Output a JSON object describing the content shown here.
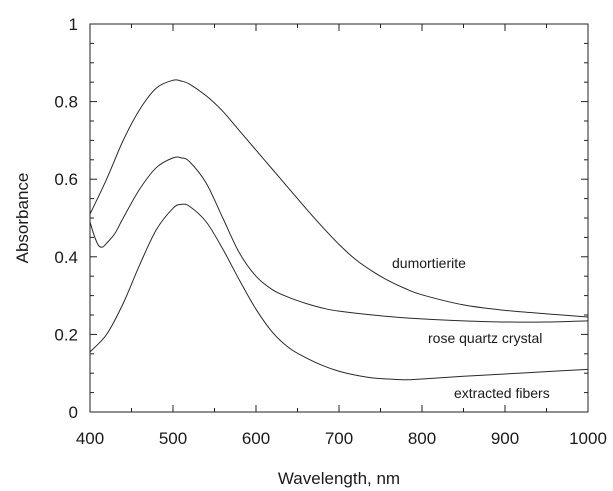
{
  "chart_data": {
    "type": "line",
    "title": "",
    "xlabel": "Wavelength, nm",
    "ylabel": "Absorbance",
    "xlim": [
      400,
      1000
    ],
    "ylim": [
      0,
      1
    ],
    "x_ticks": [
      400,
      500,
      600,
      700,
      800,
      900,
      1000
    ],
    "y_ticks": [
      0,
      0.2,
      0.4,
      0.6,
      0.8,
      1
    ],
    "y_tick_labels": [
      "0",
      "0.2",
      "0.4",
      "0.6",
      "0.8",
      "1"
    ],
    "grid": false,
    "legend": "none",
    "series": [
      {
        "name": "dumortierite",
        "x": [
          400,
          420,
          440,
          460,
          480,
          500,
          510,
          520,
          540,
          560,
          580,
          600,
          620,
          640,
          660,
          680,
          700,
          720,
          740,
          760,
          780,
          800,
          850,
          900,
          950,
          1000
        ],
        "y": [
          0.51,
          0.6,
          0.7,
          0.78,
          0.835,
          0.855,
          0.853,
          0.845,
          0.815,
          0.775,
          0.725,
          0.675,
          0.625,
          0.575,
          0.525,
          0.477,
          0.432,
          0.393,
          0.363,
          0.338,
          0.318,
          0.302,
          0.276,
          0.262,
          0.253,
          0.245
        ]
      },
      {
        "name": "rose quartz crystal",
        "x": [
          400,
          405,
          410,
          415,
          420,
          430,
          440,
          460,
          480,
          500,
          510,
          520,
          540,
          560,
          580,
          600,
          620,
          640,
          660,
          680,
          700,
          750,
          800,
          850,
          900,
          950,
          1000
        ],
        "y": [
          0.49,
          0.455,
          0.43,
          0.425,
          0.435,
          0.46,
          0.5,
          0.575,
          0.63,
          0.655,
          0.655,
          0.645,
          0.59,
          0.5,
          0.41,
          0.35,
          0.315,
          0.295,
          0.28,
          0.268,
          0.26,
          0.248,
          0.24,
          0.235,
          0.232,
          0.232,
          0.235
        ]
      },
      {
        "name": "extracted fibers",
        "x": [
          400,
          420,
          440,
          460,
          480,
          500,
          510,
          520,
          540,
          560,
          580,
          600,
          620,
          640,
          660,
          680,
          700,
          720,
          740,
          760,
          780,
          800,
          850,
          900,
          950,
          1000
        ],
        "y": [
          0.155,
          0.2,
          0.28,
          0.38,
          0.47,
          0.525,
          0.535,
          0.53,
          0.49,
          0.42,
          0.34,
          0.265,
          0.205,
          0.165,
          0.14,
          0.12,
          0.105,
          0.095,
          0.088,
          0.085,
          0.083,
          0.085,
          0.092,
          0.098,
          0.104,
          0.11
        ]
      }
    ]
  }
}
